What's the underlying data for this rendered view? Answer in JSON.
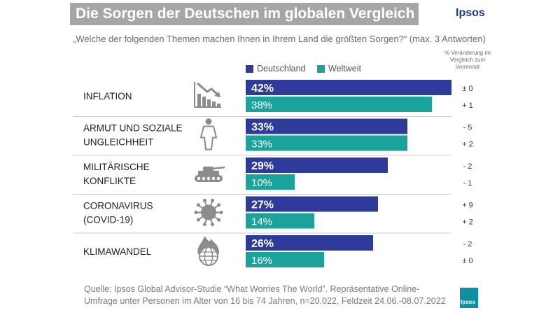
{
  "header": {
    "title": "Die Sorgen der Deutschen im globalen Vergleich",
    "brand": "Ipsos",
    "question": "„Welche der folgenden Themen machen Ihnen in Ihrem Land die größten Sorgen?“ (max. 3 Antworten)",
    "change_header": "% Veränderung im Vergleich zum Vormonat"
  },
  "colors": {
    "deutschland": "#2e3b9b",
    "weltweit": "#1aa39a",
    "divider": "#cccccc",
    "icon": "#8c8c8c"
  },
  "chart_data": {
    "type": "bar",
    "orientation": "horizontal",
    "categories": [
      [
        "INFLATION"
      ],
      [
        "ARMUT UND SOZIALE",
        "UNGLEICHHEIT"
      ],
      [
        "MILITÄRISCHE",
        "KONFLIKTE"
      ],
      [
        "CORONAVIRUS",
        "(COVID-19)"
      ],
      [
        "KLIMAWANDEL"
      ]
    ],
    "icons": [
      "falling-chart-icon",
      "person-icon",
      "tank-icon",
      "virus-icon",
      "burning-globe-icon"
    ],
    "series": [
      {
        "name": "Deutschland",
        "values": [
          42,
          33,
          29,
          27,
          26
        ],
        "labels": [
          "42%",
          "33%",
          "29%",
          "27%",
          "26%"
        ],
        "changes": [
          "± 0",
          "- 5",
          "- 2",
          "+ 9",
          "- 2"
        ]
      },
      {
        "name": "Weltweit",
        "values": [
          38,
          33,
          10,
          14,
          16
        ],
        "labels": [
          "38%",
          "33%",
          "10%",
          "14%",
          "16%"
        ],
        "changes": [
          "+ 1",
          "+ 2",
          "- 1",
          "+ 2",
          "± 0"
        ]
      }
    ],
    "xlim": [
      0,
      42
    ],
    "legend": "top",
    "grid": false
  },
  "footer": {
    "source_line1": "Quelle: Ipsos Global Advisor-Studie “What Worries The World”. Repräsentative Online-",
    "source_line2": "Umfrage unter Personen im Alter von 16 bis 74 Jahren, n=20.022, Feldzeit 24.06.-08.07.2022",
    "logo_text": "Ipsos"
  }
}
